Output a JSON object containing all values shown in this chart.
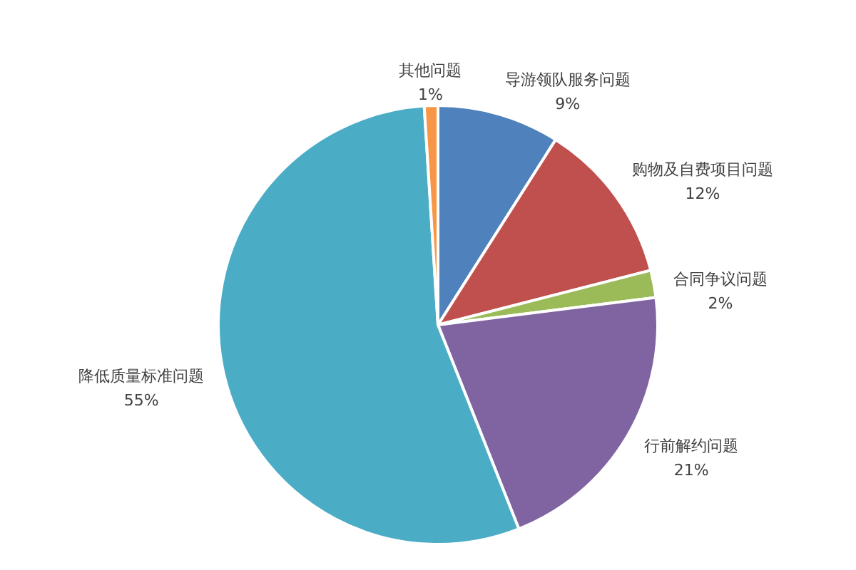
{
  "chart_data": {
    "type": "pie",
    "categories": [
      "导游领队服务问题",
      "购物及自费项目问题",
      "合同争议问题",
      "行前解约问题",
      "降低质量标准问题",
      "其他问题"
    ],
    "values": [
      9,
      12,
      2,
      21,
      55,
      1
    ],
    "value_labels": [
      "9%",
      "12%",
      "2%",
      "21%",
      "55%",
      "1%"
    ],
    "colors": [
      "#4f81bd",
      "#c0504d",
      "#9bbb59",
      "#8064a2",
      "#4bacc6",
      "#f79646"
    ],
    "legend": false
  }
}
